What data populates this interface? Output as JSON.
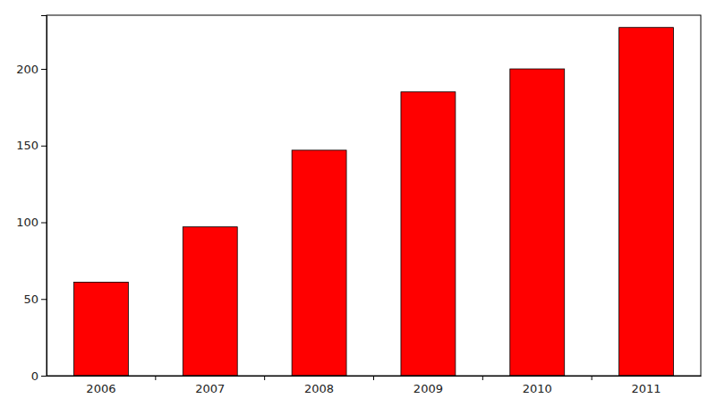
{
  "chart_data": {
    "type": "bar",
    "categories": [
      "2006",
      "2007",
      "2008",
      "2009",
      "2010",
      "2011"
    ],
    "values": [
      61,
      97,
      147,
      185,
      200,
      227
    ],
    "color": "#ff0000",
    "ylim": [
      0,
      235
    ],
    "yticks": [
      0,
      50,
      100,
      150,
      200
    ],
    "grid": false
  }
}
